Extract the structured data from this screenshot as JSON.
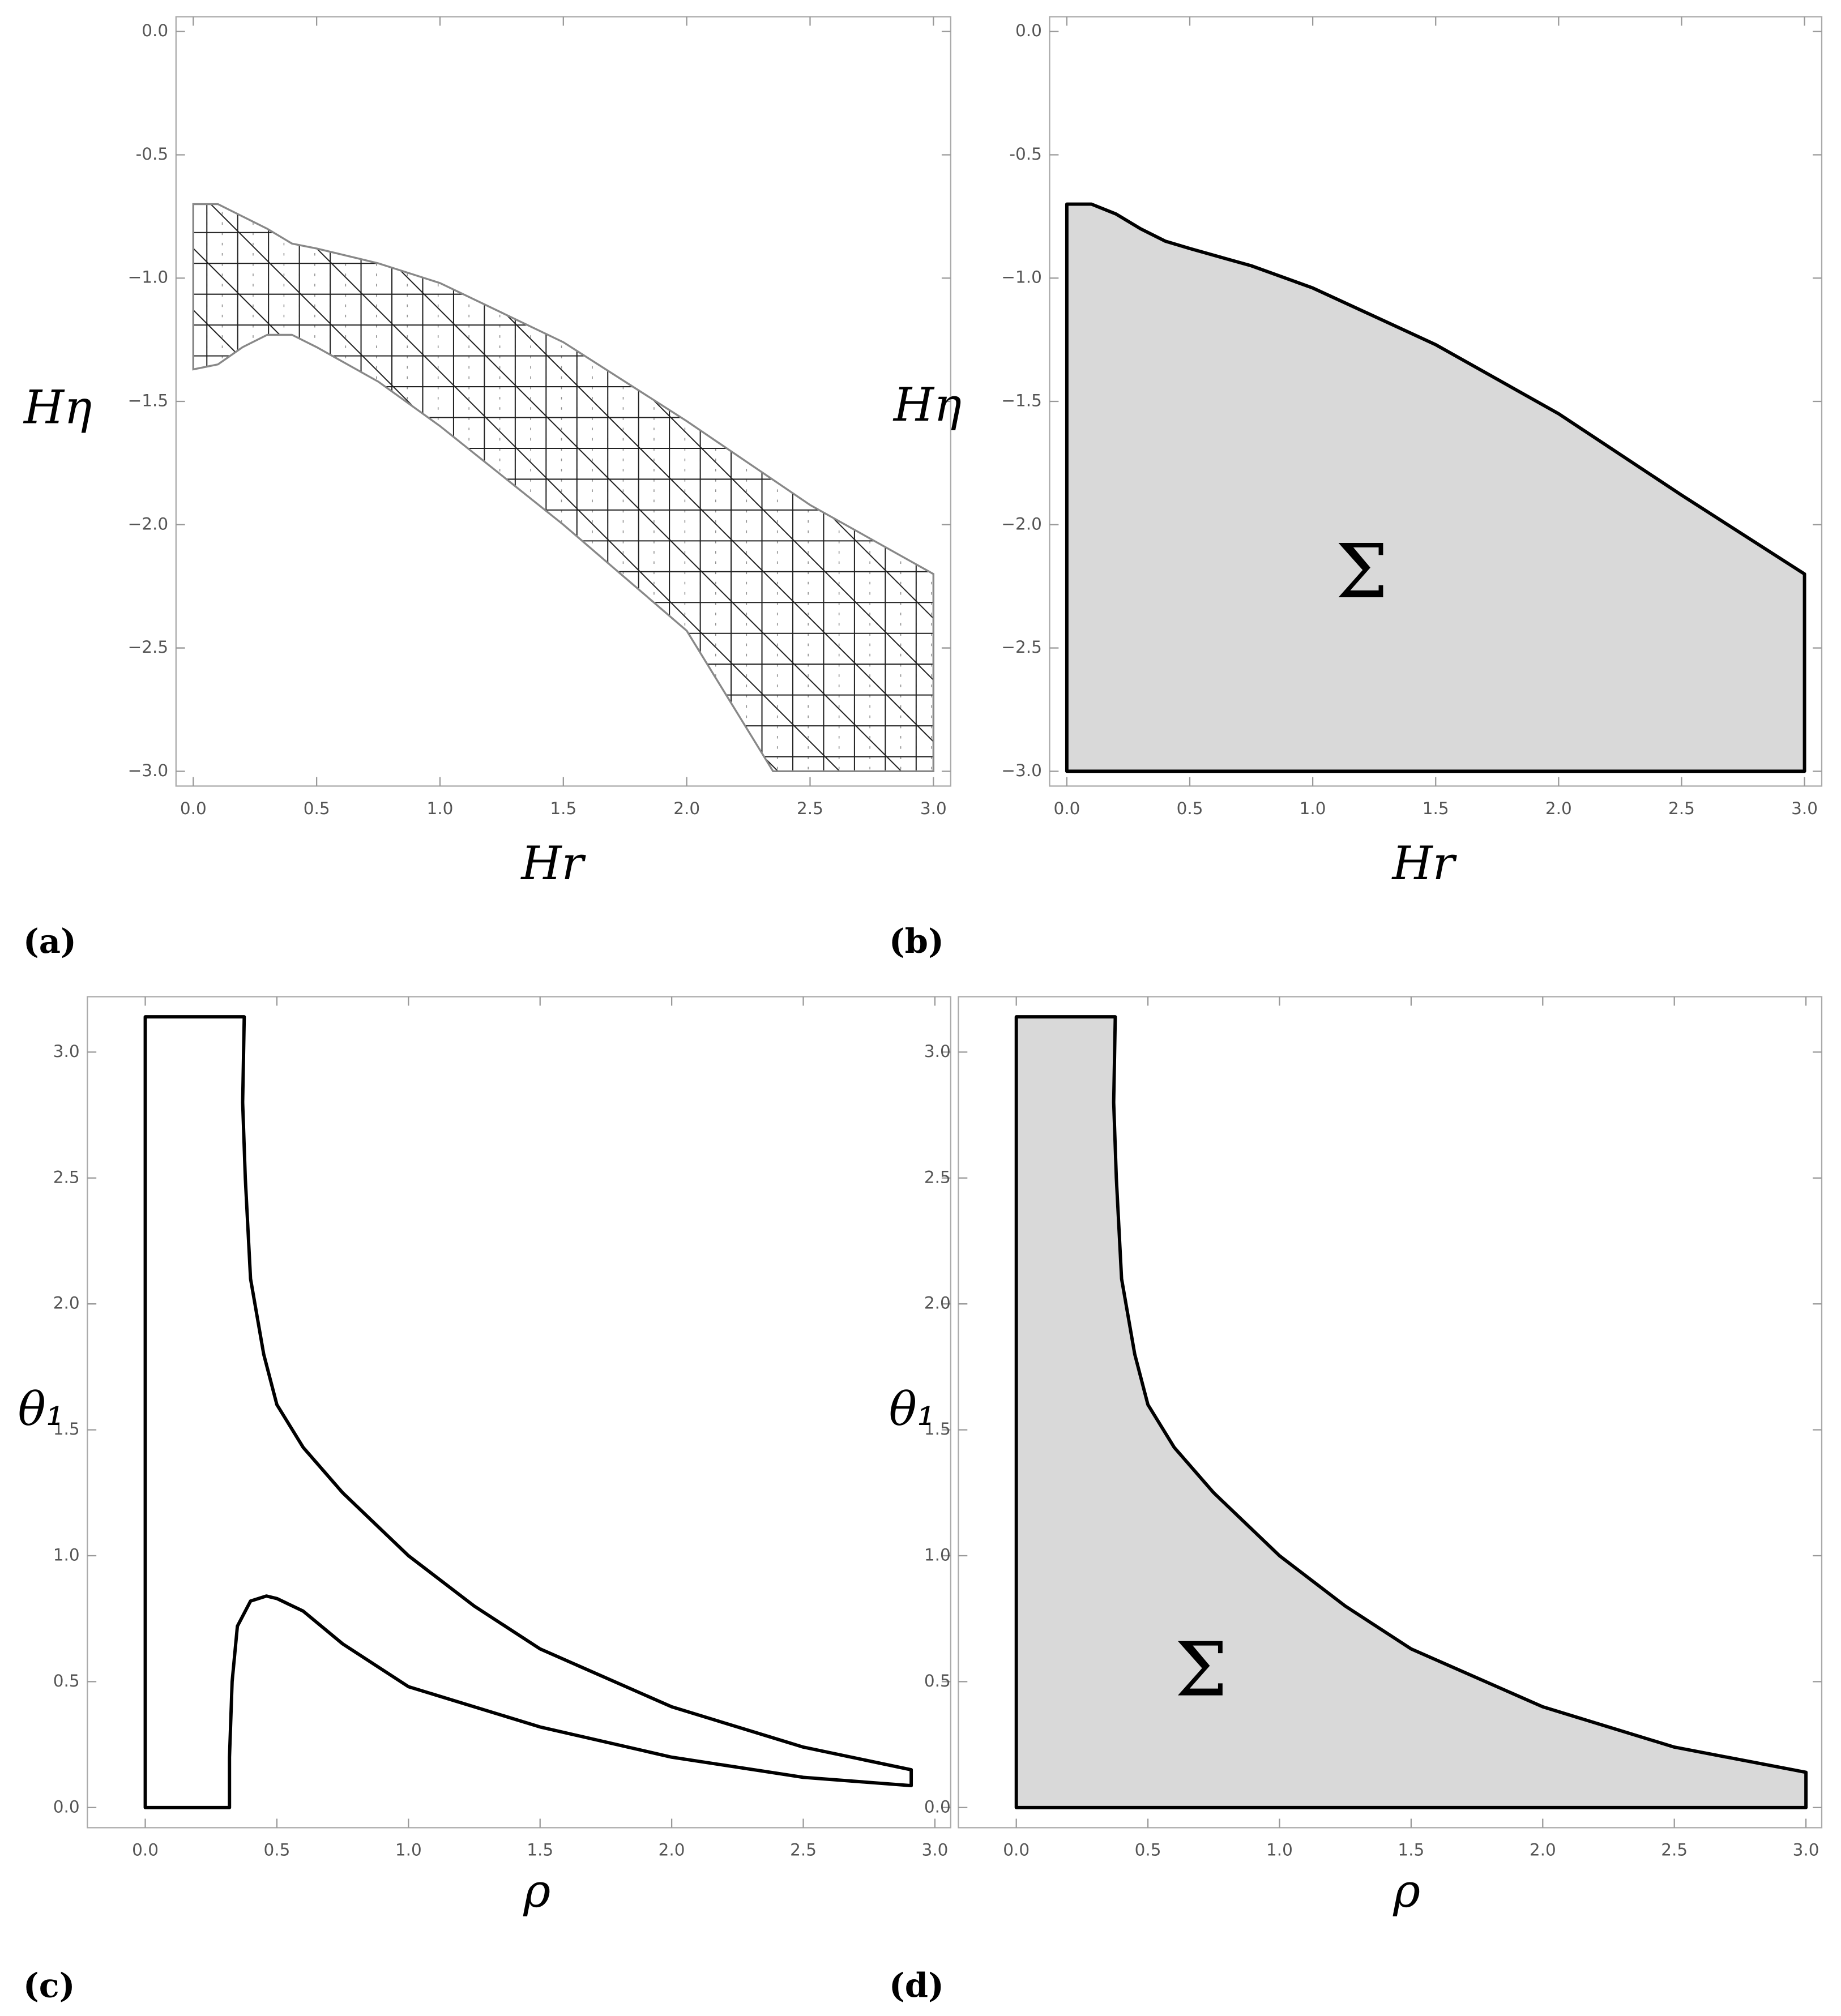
{
  "chart_data": [
    {
      "type": "region",
      "panel_label": "(a)",
      "xlabel": "Hr",
      "ylabel": "Hη",
      "xlim": [
        -0.07,
        3.07
      ],
      "ylim": [
        -3.06,
        0.06
      ],
      "xticks": [
        {
          "value": 0,
          "label": "0.0"
        },
        0.5,
        {
          "value": 1,
          "label": "1.0"
        },
        1.5,
        {
          "value": 2,
          "label": "2.0"
        },
        2.5,
        {
          "value": 3,
          "label": "3.0"
        }
      ],
      "yticks": [
        {
          "value": 0,
          "label": "0.0"
        },
        -0.5,
        {
          "value": -1,
          "label": "−1.0"
        },
        {
          "value": -1.5,
          "label": "−1.5"
        },
        {
          "value": -2,
          "label": "−2.0"
        },
        {
          "value": -2.5,
          "label": "−2.5"
        },
        {
          "value": -3,
          "label": "−3.0"
        }
      ],
      "fill": "mesh",
      "color": "#888888",
      "boundary": {
        "x": [
          0,
          0.1,
          0.2,
          0.3,
          0.4,
          0.5,
          0.75,
          1.0,
          1.5,
          2.0,
          2.5,
          3.0,
          3.0,
          2.35,
          2.0,
          1.5,
          1.0,
          0.75,
          0.5,
          0.4,
          0.3,
          0.2,
          0.1,
          0
        ],
        "values": [
          -0.7,
          -0.7,
          -0.75,
          -0.8,
          -0.86,
          -0.88,
          -0.94,
          -1.02,
          -1.26,
          -1.58,
          -1.92,
          -2.2,
          -3.0,
          -3.0,
          -2.43,
          -2.0,
          -1.6,
          -1.42,
          -1.28,
          -1.23,
          -1.23,
          -1.28,
          -1.35,
          -1.37
        ]
      }
    },
    {
      "type": "region",
      "panel_label": "(b)",
      "xlabel": "Hr",
      "ylabel": "Hη",
      "annotation": "Σ",
      "xlim": [
        -0.07,
        3.07
      ],
      "ylim": [
        -3.06,
        0.06
      ],
      "xticks": [
        {
          "value": 0,
          "label": "0.0"
        },
        0.5,
        {
          "value": 1,
          "label": "1.0"
        },
        1.5,
        {
          "value": 2,
          "label": "2.0"
        },
        2.5,
        {
          "value": 3,
          "label": "3.0"
        }
      ],
      "yticks": [
        {
          "value": 0,
          "label": "0.0"
        },
        -0.5,
        {
          "value": -1,
          "label": "−1.0"
        },
        {
          "value": -1.5,
          "label": "−1.5"
        },
        {
          "value": -2,
          "label": "−2.0"
        },
        {
          "value": -2.5,
          "label": "−2.5"
        },
        {
          "value": -3,
          "label": "−3.0"
        }
      ],
      "fill": "#d9d9d9",
      "color": "#000000",
      "boundary": {
        "x": [
          0,
          0,
          0.1,
          0.2,
          0.3,
          0.4,
          0.5,
          0.75,
          1.0,
          1.5,
          2.0,
          2.5,
          3.0,
          3.0
        ],
        "values": [
          -3.0,
          -0.7,
          -0.7,
          -0.74,
          -0.8,
          -0.85,
          -0.88,
          -0.95,
          -1.04,
          -1.27,
          -1.55,
          -1.88,
          -2.2,
          -3.0
        ]
      }
    },
    {
      "type": "region",
      "panel_label": "(c)",
      "xlabel": "ρ",
      "ylabel": "θ₁",
      "xlim": [
        -0.22,
        3.06
      ],
      "ylim": [
        -0.08,
        3.22
      ],
      "xticks": [
        {
          "value": 0,
          "label": "0.0"
        },
        0.5,
        {
          "value": 1,
          "label": "1.0"
        },
        1.5,
        {
          "value": 2,
          "label": "2.0"
        },
        2.5,
        {
          "value": 3,
          "label": "3.0"
        }
      ],
      "yticks": [
        {
          "value": 0,
          "label": "0.0"
        },
        0.5,
        {
          "value": 1,
          "label": "1.0"
        },
        1.5,
        {
          "value": 2,
          "label": "2.0"
        },
        2.5,
        {
          "value": 3,
          "label": "3.0"
        }
      ],
      "fill": "none",
      "color": "#000000",
      "boundary": {
        "x": [
          0,
          0,
          0.376,
          0.37,
          0.38,
          0.4,
          0.45,
          0.5,
          0.6,
          0.75,
          1.0,
          1.25,
          1.5,
          2.0,
          2.5,
          2.91,
          2.91,
          2.5,
          2.0,
          1.5,
          1.0,
          0.75,
          0.6,
          0.5,
          0.46,
          0.4,
          0.35,
          0.33,
          0.32,
          0.32,
          0
        ],
        "values": [
          0,
          3.14,
          3.14,
          2.8,
          2.5,
          2.1,
          1.8,
          1.6,
          1.43,
          1.25,
          1.0,
          0.8,
          0.63,
          0.4,
          0.24,
          0.15,
          0.087,
          0.12,
          0.2,
          0.32,
          0.48,
          0.65,
          0.78,
          0.83,
          0.84,
          0.82,
          0.72,
          0.5,
          0.2,
          0,
          0
        ]
      }
    },
    {
      "type": "region",
      "panel_label": "(d)",
      "xlabel": "ρ",
      "ylabel": "θ₁",
      "annotation": "Σ",
      "xlim": [
        -0.22,
        3.06
      ],
      "ylim": [
        -0.08,
        3.22
      ],
      "xticks": [
        {
          "value": 0,
          "label": "0.0"
        },
        0.5,
        {
          "value": 1,
          "label": "1.0"
        },
        1.5,
        {
          "value": 2,
          "label": "2.0"
        },
        2.5,
        {
          "value": 3,
          "label": "3.0"
        }
      ],
      "yticks": [
        {
          "value": 0,
          "label": "0.0"
        },
        0.5,
        {
          "value": 1,
          "label": "1.0"
        },
        1.5,
        {
          "value": 2,
          "label": "2.0"
        },
        2.5,
        {
          "value": 3,
          "label": "3.0"
        }
      ],
      "fill": "#d9d9d9",
      "color": "#000000",
      "boundary": {
        "x": [
          0,
          0,
          0.376,
          0.37,
          0.38,
          0.4,
          0.45,
          0.5,
          0.6,
          0.75,
          1.0,
          1.25,
          1.5,
          2.0,
          2.5,
          3.0,
          3.0
        ],
        "values": [
          0,
          3.14,
          3.14,
          2.8,
          2.5,
          2.1,
          1.8,
          1.6,
          1.43,
          1.25,
          1.0,
          0.8,
          0.63,
          0.4,
          0.24,
          0.14,
          0
        ]
      }
    }
  ]
}
